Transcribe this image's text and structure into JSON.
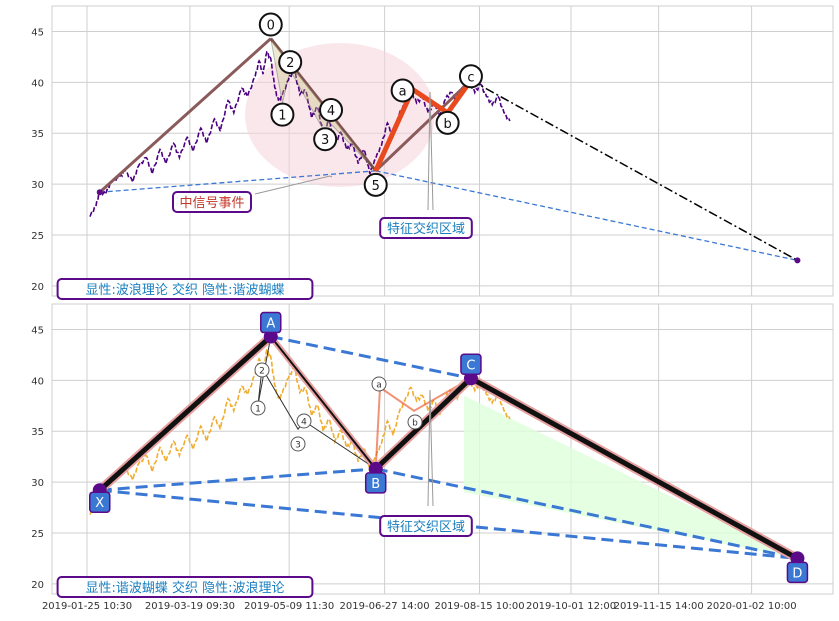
{
  "colors": {
    "grid": "#cfcfcf",
    "axis_text": "#333333",
    "price_top": "#4b0082",
    "price_bottom": "#f0ad30",
    "wave_line": "#8b5a5a",
    "ab_line": "#e8491d",
    "projection": "#000000",
    "zone_line": "#3a78d4",
    "label_text": "#1a7fbf",
    "label_border": "#5b0a8a",
    "signal_text": "#c0392b",
    "highlight_fill": "#f5d3dc",
    "harmonic_fill": "#dfffdc",
    "badge_fill": "#3a78d4",
    "marker": "#5b0a8a"
  },
  "chart_data": [
    {
      "type": "line",
      "panel": "top",
      "ylim": [
        19,
        47.5
      ],
      "yticks": [
        20,
        25,
        30,
        35,
        40,
        45
      ],
      "grid": true,
      "price_series": [
        [
          "2019-01-27",
          26.8
        ],
        [
          "2019-01-30",
          27.8
        ],
        [
          "2019-02-01",
          29.3
        ],
        [
          "2019-02-04",
          29.0
        ],
        [
          "2019-02-07",
          30.2
        ],
        [
          "2019-02-11",
          30.6
        ],
        [
          "2019-02-14",
          31.3
        ],
        [
          "2019-02-18",
          30.2
        ],
        [
          "2019-02-21",
          31.8
        ],
        [
          "2019-02-25",
          32.6
        ],
        [
          "2019-02-28",
          31.0
        ],
        [
          "2019-03-04",
          33.4
        ],
        [
          "2019-03-07",
          32.0
        ],
        [
          "2019-03-11",
          34.0
        ],
        [
          "2019-03-14",
          32.6
        ],
        [
          "2019-03-18",
          34.6
        ],
        [
          "2019-03-21",
          33.2
        ],
        [
          "2019-03-25",
          35.5
        ],
        [
          "2019-03-28",
          34.0
        ],
        [
          "2019-04-01",
          36.4
        ],
        [
          "2019-04-04",
          35.2
        ],
        [
          "2019-04-08",
          38.2
        ],
        [
          "2019-04-11",
          37.0
        ],
        [
          "2019-04-15",
          39.4
        ],
        [
          "2019-04-18",
          38.6
        ],
        [
          "2019-04-22",
          40.6
        ],
        [
          "2019-04-24",
          42.1
        ],
        [
          "2019-04-26",
          40.8
        ],
        [
          "2019-04-28",
          43.0
        ],
        [
          "2019-04-30",
          42.3
        ],
        [
          "2019-05-02",
          39.5
        ],
        [
          "2019-05-04",
          38.2
        ],
        [
          "2019-05-06",
          38.8
        ],
        [
          "2019-05-09",
          40.2
        ],
        [
          "2019-05-12",
          41.3
        ],
        [
          "2019-05-15",
          38.8
        ],
        [
          "2019-05-18",
          39.2
        ],
        [
          "2019-05-21",
          36.5
        ],
        [
          "2019-05-24",
          37.6
        ],
        [
          "2019-05-27",
          35.0
        ],
        [
          "2019-05-30",
          36.2
        ],
        [
          "2019-06-02",
          34.0
        ],
        [
          "2019-06-05",
          35.1
        ],
        [
          "2019-06-08",
          33.4
        ],
        [
          "2019-06-11",
          33.9
        ],
        [
          "2019-06-14",
          32.0
        ],
        [
          "2019-06-17",
          33.4
        ],
        [
          "2019-06-20",
          31.0
        ],
        [
          "2019-06-23",
          32.5
        ],
        [
          "2019-06-26",
          33.8
        ],
        [
          "2019-06-29",
          36.0
        ],
        [
          "2019-07-02",
          34.6
        ],
        [
          "2019-07-05",
          36.8
        ],
        [
          "2019-07-08",
          38.0
        ],
        [
          "2019-07-11",
          39.3
        ],
        [
          "2019-07-14",
          38.0
        ],
        [
          "2019-07-17",
          38.5
        ],
        [
          "2019-07-20",
          37.0
        ],
        [
          "2019-07-23",
          38.0
        ],
        [
          "2019-07-26",
          36.6
        ],
        [
          "2019-07-29",
          38.4
        ],
        [
          "2019-08-01",
          39.0
        ],
        [
          "2019-08-04",
          38.2
        ],
        [
          "2019-08-07",
          39.6
        ],
        [
          "2019-08-10",
          40.2
        ],
        [
          "2019-08-13",
          39.0
        ],
        [
          "2019-08-16",
          39.8
        ],
        [
          "2019-08-19",
          38.6
        ],
        [
          "2019-08-22",
          37.8
        ],
        [
          "2019-08-25",
          38.6
        ],
        [
          "2019-08-28",
          37.0
        ],
        [
          "2019-08-31",
          36.2
        ]
      ],
      "waves": [
        {
          "label": "0",
          "x": "2019-04-30",
          "y": 44.3
        },
        {
          "label": "1",
          "x": "2019-05-06",
          "y": 38.0
        },
        {
          "label": "2",
          "x": "2019-05-10",
          "y": 41.2
        },
        {
          "label": "3",
          "x": "2019-05-28",
          "y": 35.0
        },
        {
          "label": "4",
          "x": "2019-05-31",
          "y": 35.9
        },
        {
          "label": "5",
          "x": "2019-06-23",
          "y": 31.3
        }
      ],
      "abc": [
        {
          "label": "a",
          "x": "2019-07-12",
          "y": 39.3
        },
        {
          "label": "b",
          "x": "2019-07-30",
          "y": 37.0
        },
        {
          "label": "c",
          "x": "2019-08-11",
          "y": 40.2
        }
      ],
      "trend_start": {
        "x": "2019-02-01",
        "y": 29.2
      },
      "projection_end": {
        "x": "2020-01-26",
        "y": 22.5
      },
      "signal_label": "中信号事件",
      "zone_label": "特征交织区域",
      "legend_text": "显性:波浪理论 交织 隐性:谐波蝴蝶"
    },
    {
      "type": "line",
      "panel": "bottom",
      "ylim": [
        19,
        47.5
      ],
      "yticks": [
        20,
        25,
        30,
        35,
        40,
        45
      ],
      "grid": true,
      "xticks": [
        "2019-01-25 10:30",
        "2019-03-19 09:30",
        "2019-05-09 11:30",
        "2019-06-27 14:00",
        "2019-08-15 10:00",
        "2019-10-01 12:00",
        "2019-11-15 14:00",
        "2020-01-02 10:00"
      ],
      "harmonic_points": [
        {
          "label": "X",
          "x": "2019-02-01",
          "y": 29.2
        },
        {
          "label": "A",
          "x": "2019-04-30",
          "y": 44.3
        },
        {
          "label": "B",
          "x": "2019-06-23",
          "y": 31.3
        },
        {
          "label": "C",
          "x": "2019-08-11",
          "y": 40.2
        },
        {
          "label": "D",
          "x": "2020-01-26",
          "y": 22.5
        }
      ],
      "small_labels": [
        "1",
        "2",
        "3",
        "4",
        "a",
        "b"
      ],
      "zone_label": "特征交织区域",
      "legend_text": "显性:谐波蝴蝶 交织 隐性:波浪理论"
    }
  ]
}
